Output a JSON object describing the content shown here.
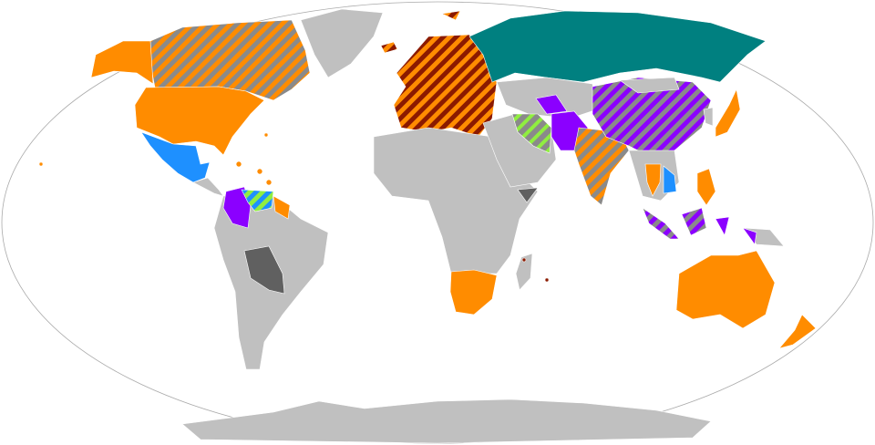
{
  "map": {
    "projection": "robinson",
    "colors": {
      "ocean": "#ffffff",
      "outline": "#aaaaaa",
      "land_default": "#c0c0c0",
      "land_dark": "#606060",
      "orange": "#ff8c00",
      "dark_red": "#8b1a00",
      "teal": "#008080",
      "purple": "#8b00ff",
      "blue": "#1e90ff",
      "green": "#90ee40",
      "gray_hatch": "#8a8a8a"
    }
  }
}
